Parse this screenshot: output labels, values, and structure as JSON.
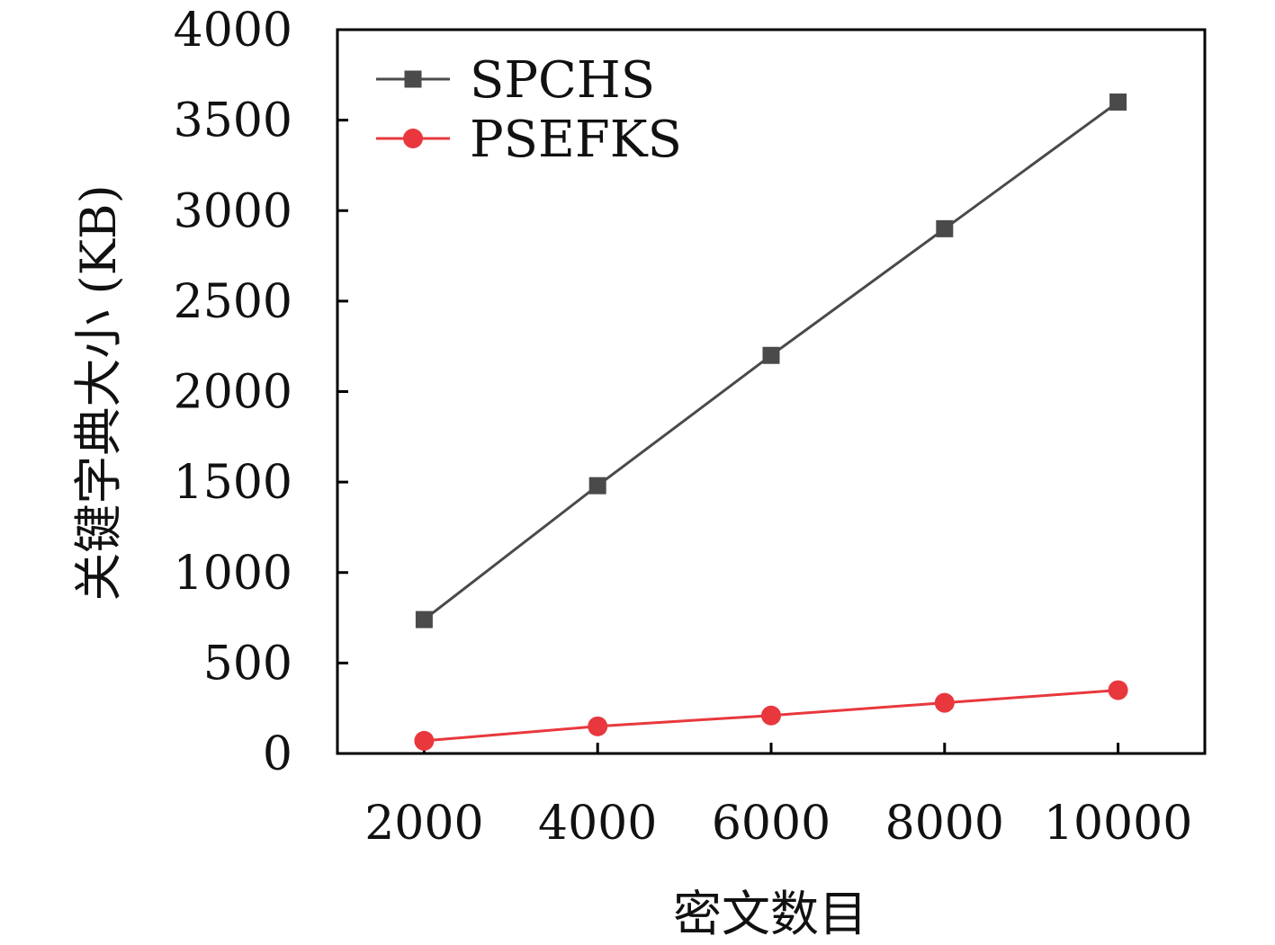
{
  "chart_data": {
    "type": "line",
    "title": "",
    "xlabel": "密文数目",
    "ylabel": "关键字典大小 (KB)",
    "x": [
      2000,
      4000,
      6000,
      8000,
      10000
    ],
    "x_ticks": [
      "2000",
      "4000",
      "6000",
      "8000",
      "10000"
    ],
    "xlim": [
      1000,
      11000
    ],
    "ylim": [
      0,
      4000
    ],
    "y_ticks": [
      "0",
      "500",
      "1000",
      "1500",
      "2000",
      "2500",
      "3000",
      "3500",
      "4000"
    ],
    "grid": false,
    "legend_position": "top-left",
    "series": [
      {
        "name": "SPCHS",
        "values": [
          740,
          1480,
          2200,
          2900,
          3600
        ],
        "color": "#4a4a4a",
        "marker": "square"
      },
      {
        "name": "PSEFKS",
        "values": [
          70,
          150,
          210,
          280,
          350
        ],
        "color": "#e8383d",
        "marker": "circle"
      }
    ]
  }
}
